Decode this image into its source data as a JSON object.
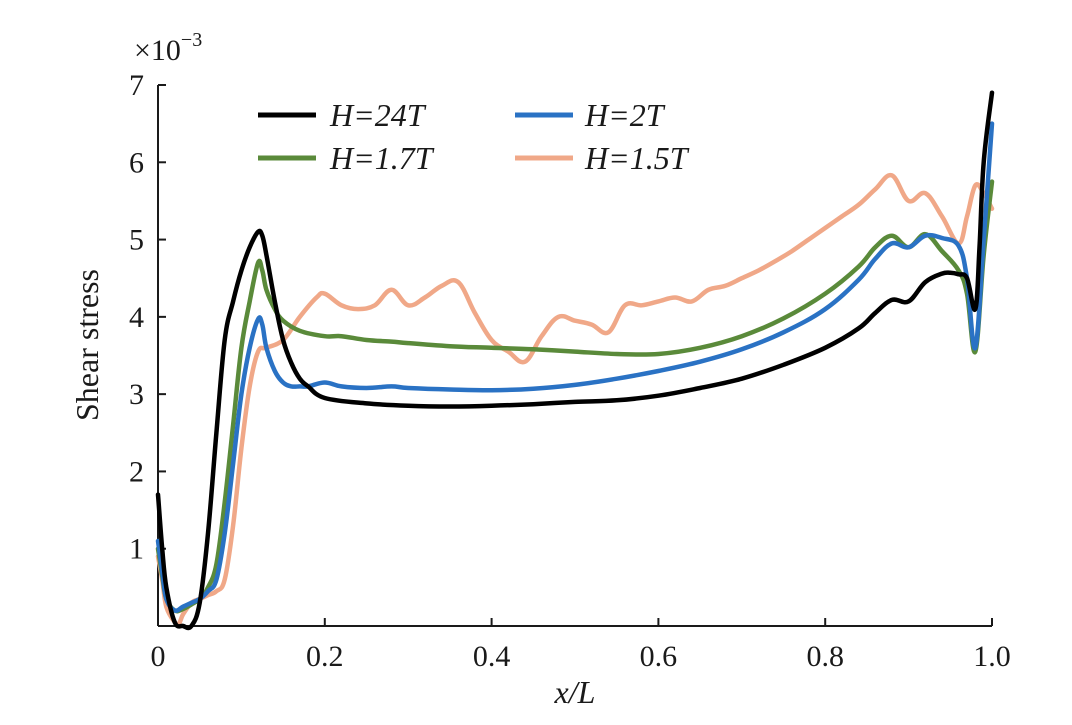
{
  "chart_data": {
    "type": "line",
    "title": "",
    "xlabel": "x/L",
    "ylabel": "Shear stress",
    "y_scale_label": "×10",
    "y_scale_exponent": "−3",
    "xlim": [
      0,
      1.0
    ],
    "ylim": [
      0,
      7
    ],
    "x_ticks": [
      0,
      0.2,
      0.4,
      0.6,
      0.8,
      1.0
    ],
    "x_tick_labels": [
      "0",
      "0.2",
      "0.4",
      "0.6",
      "0.8",
      "1.0"
    ],
    "y_ticks": [
      1,
      2,
      3,
      4,
      5,
      6,
      7
    ],
    "y_tick_labels": [
      "1",
      "2",
      "3",
      "4",
      "5",
      "6",
      "7"
    ],
    "grid": false,
    "legend_position": "top",
    "series": [
      {
        "name": "H=24T",
        "color": "#000000",
        "x": [
          0,
          0.005,
          0.01,
          0.02,
          0.03,
          0.04,
          0.05,
          0.06,
          0.07,
          0.08,
          0.09,
          0.1,
          0.11,
          0.12,
          0.125,
          0.13,
          0.14,
          0.15,
          0.16,
          0.17,
          0.18,
          0.2,
          0.25,
          0.3,
          0.35,
          0.4,
          0.45,
          0.5,
          0.55,
          0.6,
          0.65,
          0.7,
          0.75,
          0.8,
          0.84,
          0.86,
          0.88,
          0.9,
          0.92,
          0.94,
          0.95,
          0.96,
          0.97,
          0.98,
          0.985,
          0.99,
          1.0
        ],
        "y": [
          1.7,
          1.0,
          0.5,
          0.05,
          0.0,
          0.0,
          0.3,
          1.2,
          2.5,
          3.7,
          4.2,
          4.6,
          4.9,
          5.1,
          5.05,
          4.8,
          4.2,
          3.7,
          3.4,
          3.2,
          3.1,
          2.95,
          2.88,
          2.85,
          2.84,
          2.85,
          2.87,
          2.9,
          2.92,
          2.98,
          3.08,
          3.2,
          3.38,
          3.6,
          3.85,
          4.05,
          4.22,
          4.2,
          4.45,
          4.56,
          4.57,
          4.55,
          4.5,
          4.1,
          4.9,
          6.0,
          6.9
        ]
      },
      {
        "name": "H=2T",
        "color": "#2a72c4",
        "x": [
          0,
          0.005,
          0.01,
          0.02,
          0.03,
          0.04,
          0.05,
          0.06,
          0.07,
          0.08,
          0.09,
          0.1,
          0.11,
          0.12,
          0.125,
          0.13,
          0.14,
          0.15,
          0.16,
          0.17,
          0.18,
          0.2,
          0.22,
          0.25,
          0.28,
          0.3,
          0.35,
          0.4,
          0.45,
          0.5,
          0.55,
          0.6,
          0.65,
          0.7,
          0.75,
          0.8,
          0.84,
          0.86,
          0.88,
          0.9,
          0.92,
          0.94,
          0.96,
          0.97,
          0.98,
          0.99,
          1.0
        ],
        "y": [
          1.1,
          0.7,
          0.35,
          0.2,
          0.25,
          0.3,
          0.35,
          0.45,
          0.6,
          1.2,
          2.1,
          3.0,
          3.6,
          3.97,
          3.9,
          3.6,
          3.3,
          3.15,
          3.1,
          3.1,
          3.1,
          3.15,
          3.1,
          3.08,
          3.1,
          3.08,
          3.06,
          3.05,
          3.07,
          3.12,
          3.2,
          3.3,
          3.42,
          3.58,
          3.8,
          4.1,
          4.48,
          4.75,
          4.95,
          4.9,
          5.05,
          5.02,
          4.92,
          4.5,
          3.6,
          5.0,
          6.5
        ]
      },
      {
        "name": "H=1.7T",
        "color": "#5a8a3a",
        "x": [
          0,
          0.005,
          0.01,
          0.02,
          0.03,
          0.04,
          0.05,
          0.06,
          0.07,
          0.08,
          0.09,
          0.1,
          0.11,
          0.12,
          0.125,
          0.13,
          0.14,
          0.15,
          0.17,
          0.2,
          0.22,
          0.25,
          0.28,
          0.3,
          0.35,
          0.4,
          0.45,
          0.5,
          0.55,
          0.6,
          0.65,
          0.7,
          0.75,
          0.8,
          0.84,
          0.86,
          0.88,
          0.9,
          0.92,
          0.94,
          0.96,
          0.97,
          0.98,
          0.99,
          1.0
        ],
        "y": [
          1.0,
          0.65,
          0.35,
          0.2,
          0.22,
          0.28,
          0.35,
          0.5,
          0.8,
          1.6,
          2.6,
          3.6,
          4.2,
          4.7,
          4.6,
          4.35,
          4.1,
          3.95,
          3.82,
          3.75,
          3.75,
          3.7,
          3.68,
          3.66,
          3.62,
          3.6,
          3.58,
          3.55,
          3.52,
          3.52,
          3.6,
          3.75,
          3.98,
          4.3,
          4.65,
          4.9,
          5.05,
          4.9,
          5.07,
          4.85,
          4.6,
          4.3,
          3.55,
          4.8,
          5.75
        ]
      },
      {
        "name": "H=1.5T",
        "color": "#f0a888",
        "x": [
          0,
          0.005,
          0.01,
          0.02,
          0.025,
          0.03,
          0.04,
          0.05,
          0.06,
          0.07,
          0.08,
          0.09,
          0.1,
          0.11,
          0.12,
          0.13,
          0.15,
          0.17,
          0.19,
          0.2,
          0.22,
          0.24,
          0.26,
          0.28,
          0.3,
          0.32,
          0.34,
          0.36,
          0.38,
          0.4,
          0.42,
          0.44,
          0.46,
          0.48,
          0.5,
          0.52,
          0.54,
          0.56,
          0.58,
          0.6,
          0.62,
          0.64,
          0.66,
          0.68,
          0.7,
          0.72,
          0.74,
          0.76,
          0.78,
          0.8,
          0.82,
          0.84,
          0.86,
          0.88,
          0.9,
          0.92,
          0.94,
          0.96,
          0.97,
          0.98,
          0.99,
          1.0
        ],
        "y": [
          0.9,
          0.6,
          0.25,
          0.05,
          0.03,
          0.15,
          0.3,
          0.35,
          0.4,
          0.45,
          0.6,
          1.3,
          2.3,
          3.1,
          3.55,
          3.6,
          3.7,
          4.0,
          4.25,
          4.3,
          4.15,
          4.1,
          4.15,
          4.35,
          4.15,
          4.25,
          4.4,
          4.45,
          4.05,
          3.7,
          3.55,
          3.42,
          3.75,
          4.0,
          3.95,
          3.9,
          3.8,
          4.15,
          4.15,
          4.2,
          4.25,
          4.2,
          4.35,
          4.4,
          4.5,
          4.6,
          4.72,
          4.85,
          5.0,
          5.15,
          5.3,
          5.45,
          5.65,
          5.83,
          5.5,
          5.6,
          5.3,
          4.95,
          5.3,
          5.7,
          5.6,
          5.4
        ]
      }
    ]
  }
}
